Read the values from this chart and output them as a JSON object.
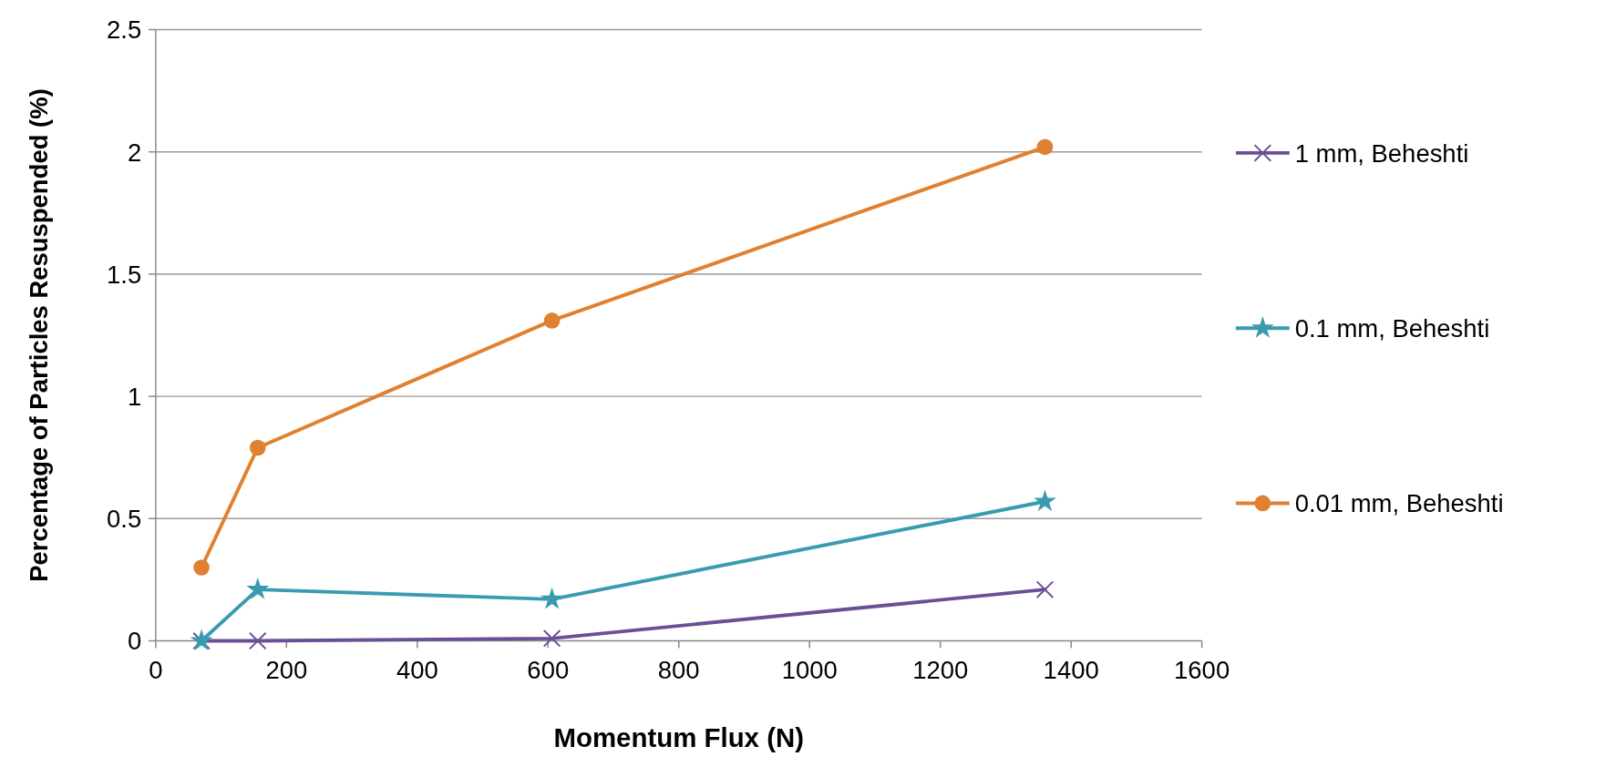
{
  "chart_data": {
    "type": "line",
    "xlabel": "Momentum Flux (N)",
    "ylabel": "Percentage of Particles Resuspended (%)",
    "x": [
      70,
      156,
      606,
      1360
    ],
    "series": [
      {
        "name": "1 mm, Beheshti",
        "color": "#6b4f95",
        "marker": "cross",
        "values": [
          0,
          0,
          0.01,
          0.21
        ]
      },
      {
        "name": "0.1 mm, Beheshti",
        "color": "#3a9bb0",
        "marker": "star",
        "values": [
          0,
          0.21,
          0.17,
          0.57
        ]
      },
      {
        "name": "0.01 mm, Beheshti",
        "color": "#e08030",
        "marker": "circle",
        "values": [
          0.3,
          0.79,
          1.31,
          2.02
        ]
      }
    ],
    "xlim": [
      0,
      1600
    ],
    "xticks": [
      0,
      200,
      400,
      600,
      800,
      1000,
      1200,
      1400,
      1600
    ],
    "ylim": [
      0,
      2.5
    ],
    "yticks": [
      0,
      0.5,
      1,
      1.5,
      2,
      2.5
    ],
    "grid": "y",
    "legend": "right"
  }
}
